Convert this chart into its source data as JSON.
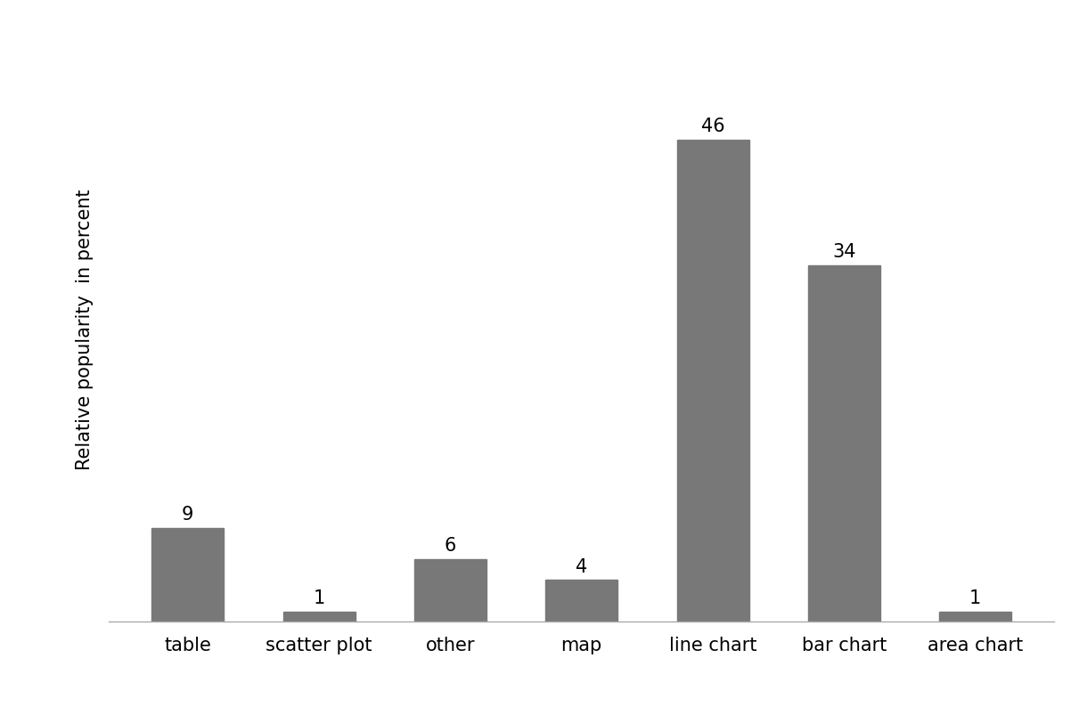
{
  "categories": [
    "table",
    "scatter plot",
    "other",
    "map",
    "line chart",
    "bar chart",
    "area chart"
  ],
  "values": [
    9,
    1,
    6,
    4,
    46,
    34,
    1
  ],
  "bar_color": "#787878",
  "ylabel": "Relative popularity  in percent",
  "ylim": [
    0,
    56
  ],
  "bar_width": 0.55,
  "tick_fontsize": 15,
  "ylabel_fontsize": 15,
  "value_label_fontsize": 15,
  "background_color": "#ffffff"
}
